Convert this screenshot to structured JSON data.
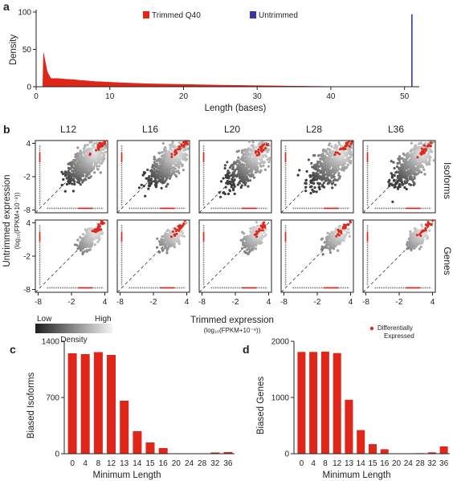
{
  "colors": {
    "trimmed": "#e02619",
    "untrimmed": "#3636a8",
    "diff": "#e02619",
    "axis": "#222222"
  },
  "chart_data": [
    {
      "panel": "a",
      "type": "area",
      "title": "",
      "xlabel": "Length (bases)",
      "ylabel": "Density",
      "xlim": [
        0,
        52
      ],
      "ylim": [
        0,
        100
      ],
      "xticks": [
        0,
        10,
        20,
        30,
        40,
        50
      ],
      "yticks": [
        0,
        50,
        100
      ],
      "series": [
        {
          "name": "Trimmed Q40",
          "x": [
            0.9,
            1,
            1.5,
            2,
            3,
            4,
            5,
            6,
            8,
            10,
            12,
            15,
            20,
            25,
            30,
            35,
            38,
            40,
            45,
            51
          ],
          "y": [
            0,
            45,
            20,
            11,
            11,
            10,
            9.5,
            8.5,
            7,
            6,
            5,
            4,
            3,
            2,
            1.4,
            0.8,
            0.4,
            0.2,
            0.1,
            0.05
          ]
        },
        {
          "name": "Untrimmed",
          "x": [
            51
          ],
          "y": [
            97
          ]
        }
      ]
    },
    {
      "panel": "b",
      "type": "scatter",
      "columns": [
        "L12",
        "L16",
        "L20",
        "L28",
        "L36"
      ],
      "rows": [
        "Isoforms",
        "Genes"
      ],
      "ylabel": "Untrimmed expression",
      "ylabel_sub": "(log₁₀(FPKM+10⁻⁸))",
      "xlabel": "Trimmed expression",
      "xlabel_sub": "(log₁₀(FPKM+10⁻⁸))",
      "xticks": [
        "-8",
        "-2",
        "4"
      ],
      "yticks": [
        "4",
        "-2",
        "-8"
      ],
      "density_legend": {
        "low": "Low",
        "high": "High",
        "label": "Density"
      },
      "diff_legend": {
        "line1": "Differentially",
        "line2": "Expressed"
      }
    },
    {
      "panel": "c",
      "type": "bar",
      "categories": [
        "0",
        "4",
        "8",
        "12",
        "13",
        "14",
        "15",
        "16",
        "20",
        "24",
        "28",
        "32",
        "36"
      ],
      "values": [
        1250,
        1240,
        1265,
        1230,
        660,
        280,
        140,
        70,
        5,
        3,
        3,
        15,
        20
      ],
      "ylim": [
        0,
        1400
      ],
      "yticks": [
        0,
        700,
        1400
      ],
      "xlabel": "Minimum Length",
      "ylabel": "Biased Isoforms"
    },
    {
      "panel": "d",
      "type": "bar",
      "categories": [
        "0",
        "4",
        "8",
        "12",
        "13",
        "14",
        "15",
        "16",
        "20",
        "24",
        "28",
        "32",
        "36"
      ],
      "values": [
        1810,
        1810,
        1815,
        1790,
        960,
        420,
        170,
        80,
        5,
        3,
        10,
        25,
        130
      ],
      "ylim": [
        0,
        2000
      ],
      "yticks": [
        0,
        1000,
        2000
      ],
      "xlabel": "Minimum Length",
      "ylabel": "Biased Genes"
    }
  ]
}
